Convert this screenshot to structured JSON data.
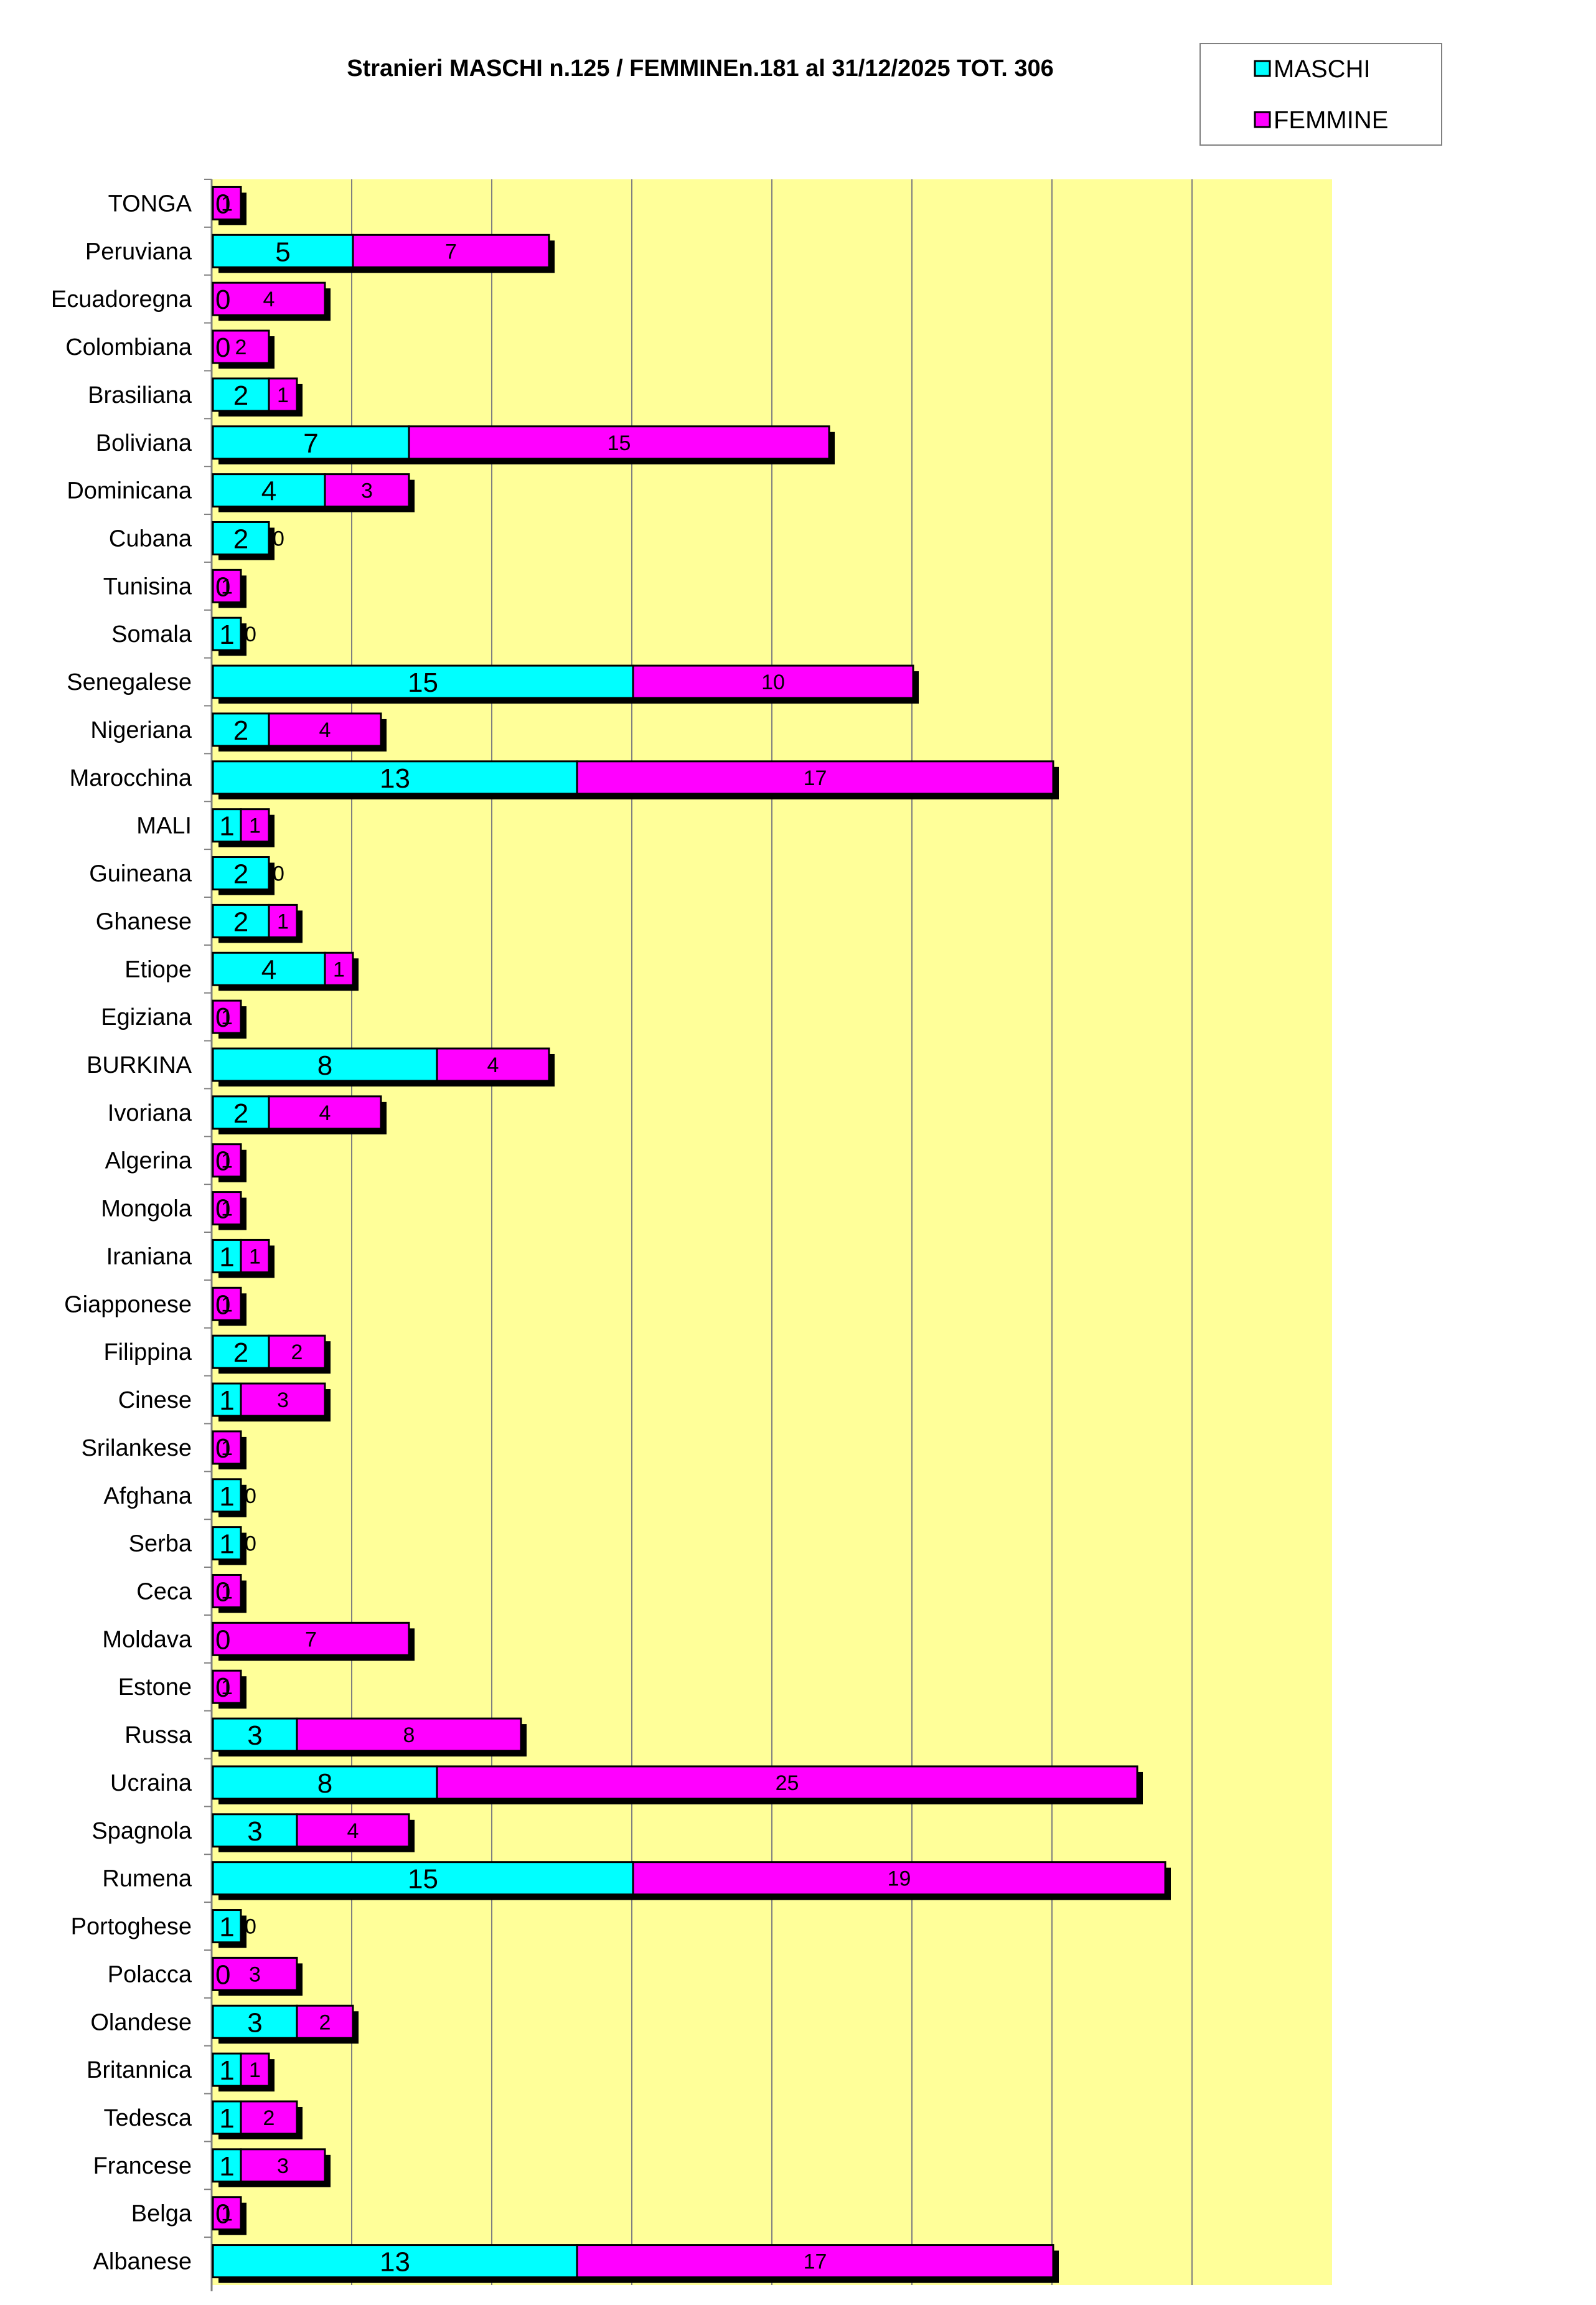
{
  "chart_data": {
    "type": "bar",
    "orientation": "horizontal",
    "stacked": true,
    "title": "Stranieri MASCHI n.125 / FEMMINEn.181  al 31/12/2025 TOT. 306",
    "categories": [
      "TONGA",
      "Peruviana",
      "Ecuadoregna",
      "Colombiana",
      "Brasiliana",
      "Boliviana",
      "Dominicana",
      "Cubana",
      "Tunisina",
      "Somala",
      "Senegalese",
      "Nigeriana",
      "Marocchina",
      "MALI",
      "Guineana",
      "Ghanese",
      "Etiope",
      "Egiziana",
      "BURKINA",
      "Ivoriana",
      "Algerina",
      "Mongola",
      "Iraniana",
      "Giapponese",
      "Filippina",
      "Cinese",
      "Srilankese",
      "Afghana",
      "Serba",
      "Ceca",
      "Moldava",
      "Estone",
      "Russa",
      "Ucraina",
      "Spagnola",
      "Rumena",
      "Portoghese",
      "Polacca",
      "Olandese",
      "Britannica",
      "Tedesca",
      "Francese",
      "Belga",
      "Albanese"
    ],
    "series": [
      {
        "name": "MASCHI",
        "color": "#00FFFF",
        "values": [
          0,
          5,
          0,
          0,
          2,
          7,
          4,
          2,
          0,
          1,
          15,
          2,
          13,
          1,
          2,
          2,
          4,
          0,
          8,
          2,
          0,
          0,
          1,
          0,
          2,
          1,
          0,
          1,
          1,
          0,
          0,
          0,
          3,
          8,
          3,
          15,
          1,
          0,
          3,
          1,
          1,
          1,
          0,
          13
        ]
      },
      {
        "name": "FEMMINE",
        "color": "#FF00FF",
        "values": [
          1,
          7,
          4,
          2,
          1,
          15,
          3,
          0,
          1,
          0,
          10,
          4,
          17,
          1,
          0,
          1,
          1,
          1,
          4,
          4,
          1,
          1,
          1,
          1,
          2,
          3,
          1,
          0,
          0,
          1,
          7,
          1,
          8,
          25,
          4,
          19,
          0,
          3,
          2,
          1,
          2,
          3,
          1,
          17
        ]
      }
    ],
    "xlim": [
      0,
      40
    ],
    "grid": true,
    "legend": "top-right",
    "plot_background": "#FFFF99"
  }
}
